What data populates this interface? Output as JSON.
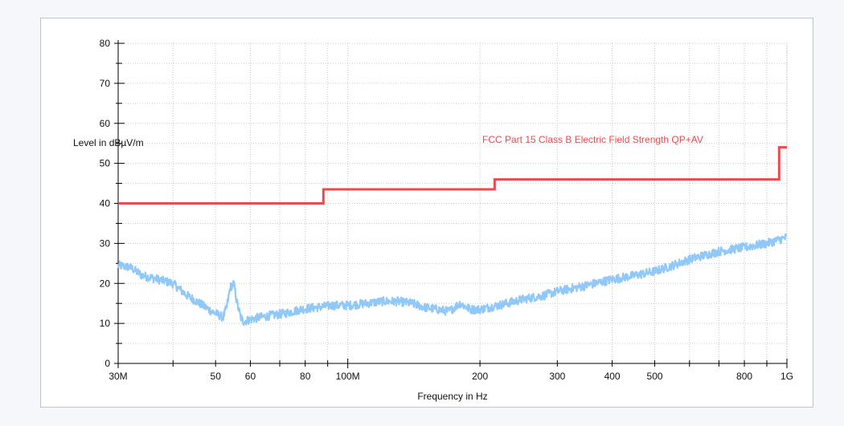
{
  "chart_data": {
    "type": "line",
    "title": "",
    "xlabel": "Frequency in Hz",
    "ylabel": "Level in dBµV/m",
    "xscale": "log",
    "xlim": [
      30000000,
      1000000000
    ],
    "ylim": [
      0,
      80
    ],
    "grid": true,
    "x_tick_values": [
      30000000,
      50000000,
      60000000,
      80000000,
      100000000,
      200000000,
      300000000,
      400000000,
      500000000,
      800000000,
      1000000000
    ],
    "x_tick_labels": [
      "30M",
      "50",
      "60",
      "80",
      "100M",
      "200",
      "300",
      "400",
      "500",
      "800",
      "1G"
    ],
    "y_tick_values": [
      0,
      10,
      20,
      30,
      40,
      50,
      60,
      70,
      80
    ],
    "y_tick_labels": [
      "0",
      "10",
      "20",
      "30",
      "40",
      "50",
      "60",
      "70",
      "80"
    ],
    "limit_label": "FCC Part 15 Class B Electric Field Strength QP+AV",
    "series": [
      {
        "name": "FCC Part 15 Class B Electric Field Strength QP+AV",
        "color": "#f0484e",
        "style": "step",
        "x": [
          30000000,
          88000000,
          88000000,
          216000000,
          216000000,
          960000000,
          960000000,
          1000000000
        ],
        "y": [
          40,
          40,
          43.5,
          43.5,
          46,
          46,
          54,
          54
        ]
      },
      {
        "color": "#90c8f8",
        "style": "noisy",
        "x": [
          30000000,
          32000000,
          34000000,
          37000000,
          40000000,
          43000000,
          46000000,
          49000000,
          51000000,
          52000000,
          53000000,
          54000000,
          55000000,
          56000000,
          57000000,
          58000000,
          60000000,
          63000000,
          67000000,
          72000000,
          78000000,
          85000000,
          92000000,
          100000000,
          110000000,
          120000000,
          130000000,
          140000000,
          150000000,
          160000000,
          170000000,
          180000000,
          190000000,
          200000000,
          220000000,
          250000000,
          280000000,
          300000000,
          350000000,
          400000000,
          450000000,
          500000000,
          550000000,
          600000000,
          700000000,
          800000000,
          900000000,
          1000000000
        ],
        "y": [
          24.5,
          24,
          22,
          21,
          20,
          17,
          15,
          13,
          12,
          11.5,
          14,
          19,
          20,
          15,
          11.5,
          10.5,
          11,
          11.5,
          12,
          12.5,
          13.5,
          14,
          14.5,
          14.5,
          15,
          15.5,
          15.5,
          15,
          14,
          13.5,
          13,
          15,
          13.5,
          13.5,
          14.5,
          16,
          17,
          18,
          19.5,
          21,
          22,
          23,
          24.5,
          26,
          28,
          29,
          30,
          31.5
        ]
      }
    ]
  }
}
